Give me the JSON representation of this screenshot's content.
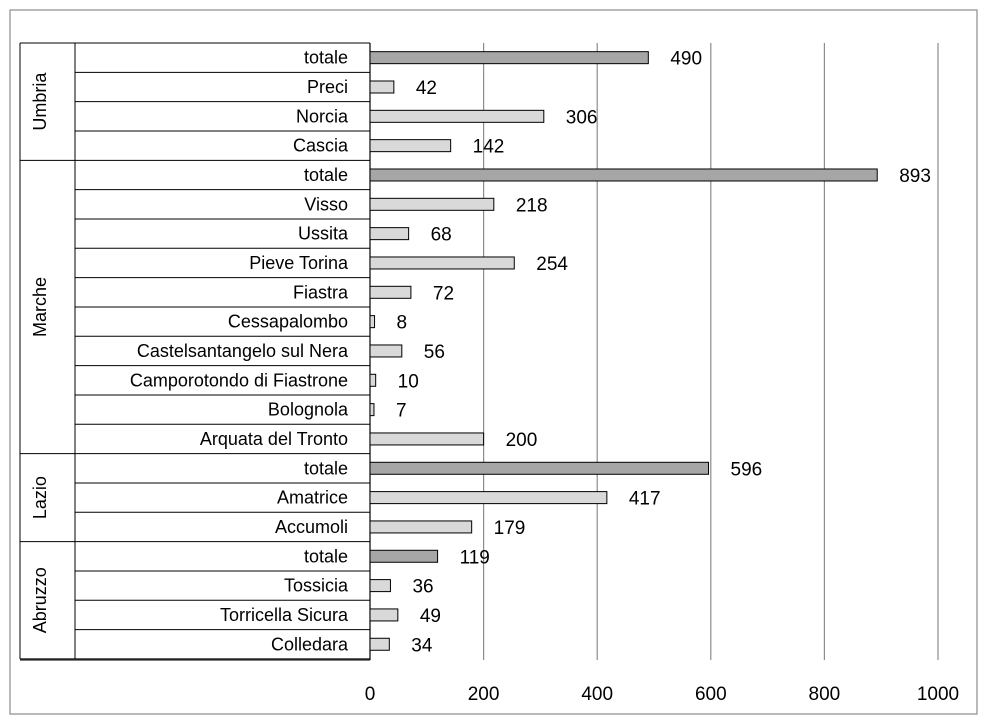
{
  "chart_data": {
    "type": "bar",
    "orientation": "horizontal",
    "xlim": [
      0,
      1000
    ],
    "xticks": [
      0,
      200,
      400,
      600,
      800,
      1000
    ],
    "grid": true,
    "legend": "none",
    "colors": {
      "total": "#a6a6a6",
      "municipality": "#d9d9d9",
      "outline": "#000000",
      "grid": "#8c8c8c"
    },
    "groups": [
      {
        "name": "Umbria",
        "bars": [
          {
            "label": "totale",
            "value": 490,
            "total": true
          },
          {
            "label": "Preci",
            "value": 42
          },
          {
            "label": "Norcia",
            "value": 306
          },
          {
            "label": "Cascia",
            "value": 142
          }
        ]
      },
      {
        "name": "Marche",
        "bars": [
          {
            "label": "totale",
            "value": 893,
            "total": true
          },
          {
            "label": "Visso",
            "value": 218
          },
          {
            "label": "Ussita",
            "value": 68
          },
          {
            "label": "Pieve Torina",
            "value": 254
          },
          {
            "label": "Fiastra",
            "value": 72
          },
          {
            "label": "Cessapalombo",
            "value": 8
          },
          {
            "label": "Castelsantangelo sul Nera",
            "value": 56
          },
          {
            "label": "Camporotondo di Fiastrone",
            "value": 10
          },
          {
            "label": "Bolognola",
            "value": 7
          },
          {
            "label": "Arquata del Tronto",
            "value": 200
          }
        ]
      },
      {
        "name": "Lazio",
        "bars": [
          {
            "label": "totale",
            "value": 596,
            "total": true
          },
          {
            "label": "Amatrice",
            "value": 417
          },
          {
            "label": "Accumoli",
            "value": 179
          }
        ]
      },
      {
        "name": "Abruzzo",
        "bars": [
          {
            "label": "totale",
            "value": 119,
            "total": true
          },
          {
            "label": "Tossicia",
            "value": 36
          },
          {
            "label": "Torricella Sicura",
            "value": 49
          },
          {
            "label": "Colledara",
            "value": 34
          }
        ]
      }
    ]
  }
}
